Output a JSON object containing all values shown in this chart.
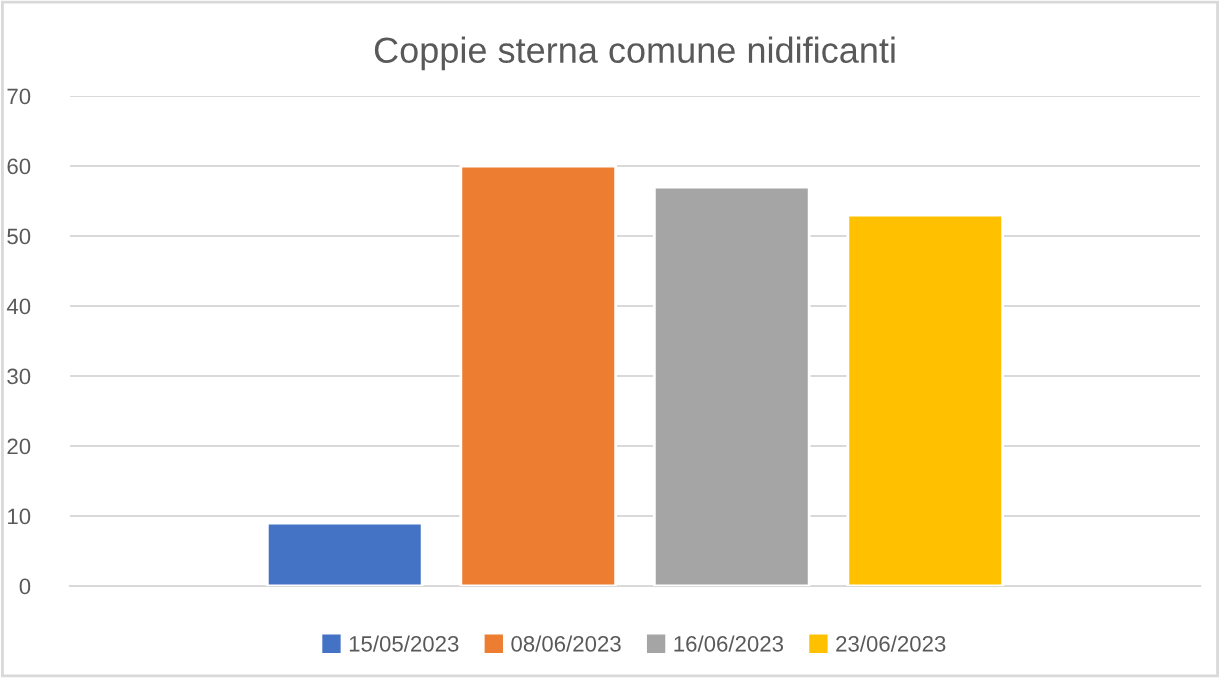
{
  "chart_data": {
    "type": "bar",
    "title": "Coppie sterna comune nidificanti",
    "categories": [
      null
    ],
    "series": [
      {
        "name": "15/05/2023",
        "color": "#4472c4",
        "values": [
          9
        ]
      },
      {
        "name": "08/06/2023",
        "color": "#ed7d31",
        "values": [
          60
        ]
      },
      {
        "name": "16/06/2023",
        "color": "#a5a5a5",
        "values": [
          57
        ]
      },
      {
        "name": "23/06/2023",
        "color": "#ffc000",
        "values": [
          53
        ]
      }
    ],
    "ylim": [
      0,
      70
    ],
    "yticks": [
      0,
      10,
      20,
      30,
      40,
      50,
      60,
      70
    ],
    "grid": "y",
    "legend": "bottom"
  }
}
